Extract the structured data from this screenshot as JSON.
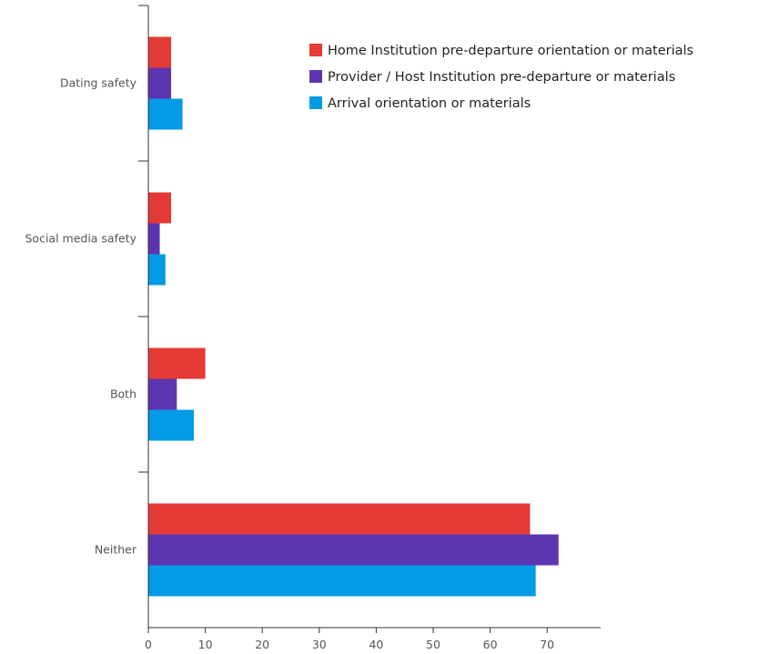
{
  "chart_data": {
    "type": "bar",
    "orientation": "horizontal",
    "categories": [
      "Dating safety",
      "Social media safety",
      "Both",
      "Neither"
    ],
    "series": [
      {
        "name": "Home Institution pre-departure orientation or materials",
        "color": "#e53935",
        "values": [
          4,
          4,
          10,
          67
        ]
      },
      {
        "name": "Provider / Host Institution pre-departure or materials",
        "color": "#5e35b1",
        "values": [
          4,
          2,
          5,
          72
        ]
      },
      {
        "name": "Arrival orientation or materials",
        "color": "#039be5",
        "values": [
          6,
          3,
          8,
          68
        ]
      }
    ],
    "xlim": [
      0,
      79
    ],
    "xticks": [
      0,
      10,
      20,
      30,
      40,
      50,
      60,
      70
    ],
    "grid": false,
    "legend_position": "top-right"
  }
}
